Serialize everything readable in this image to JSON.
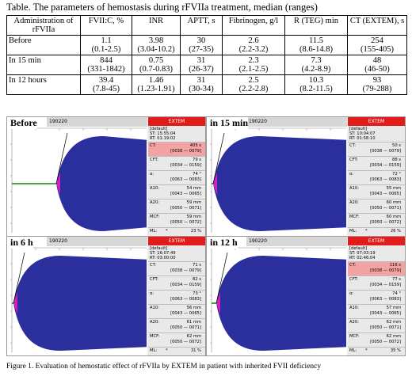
{
  "table": {
    "caption": "Table. The parameters of hemostasis during rFVIIa treatment, median (ranges)",
    "headers": [
      "Administration of rFVIIa",
      "FVII:C, %",
      "INR",
      "APTT, s",
      "Fibrinogen, g/l",
      "R (TEG) min",
      "CT (EXTEM), s"
    ],
    "rows": [
      {
        "label": "Before",
        "cells": [
          [
            "1.1",
            "(0.1-2.5)"
          ],
          [
            "3.98",
            "(3.04-10.2)"
          ],
          [
            "30",
            "(27-35)"
          ],
          [
            "2.6",
            "(2.2-3.2)"
          ],
          [
            "11.5",
            "(8.6-14.8)"
          ],
          [
            "254",
            "(155-405)"
          ]
        ]
      },
      {
        "label": "In 15 min",
        "cells": [
          [
            "844",
            "(331-1842)"
          ],
          [
            "0.75",
            "(0.7-0.83)"
          ],
          [
            "31",
            "(26-37)"
          ],
          [
            "2.3",
            "(2.1-2.5)"
          ],
          [
            "7.3",
            "(4.2-8.9)"
          ],
          [
            "48",
            "(46-50)"
          ]
        ]
      },
      {
        "label": "In 12 hours",
        "cells": [
          [
            "39.4",
            "(7.8-45)"
          ],
          [
            "1.46",
            "(1.23-1.91)"
          ],
          [
            "31",
            "(30-34)"
          ],
          [
            "2.5",
            "(2.2-2.8)"
          ],
          [
            "10.3",
            "(8.2-11.5)"
          ],
          [
            "93",
            "(79-288)"
          ]
        ]
      }
    ]
  },
  "panels": [
    {
      "label": "Before",
      "id": "190220",
      "extem": "EXTEM",
      "default": "[default]",
      "st": "ST: 15:55:04",
      "rt": "RT: 01:19:02",
      "ct": {
        "k": "CT:",
        "v": "405 s",
        "r": "[0038 — 0079]",
        "hi": true
      },
      "cft": {
        "k": "CFT:",
        "v": "79 s",
        "r": "[0034 — 0159]"
      },
      "alpha": {
        "k": "α:",
        "v": "74 °",
        "r": "[0063 — 0083]"
      },
      "a10": {
        "k": "A10:",
        "v": "54 mm",
        "r": "[0043 — 0065]"
      },
      "a20": {
        "k": "A20:",
        "v": "59 mm",
        "r": "[0050 — 0071]"
      },
      "mcf": {
        "k": "MCF:",
        "v": "59 mm",
        "r": "[0050 — 0072]"
      },
      "ml": {
        "k": "ML:",
        "star": "*",
        "v": "23 %"
      }
    },
    {
      "label": "in 15 min",
      "id": "190220",
      "extem": "EXTEM",
      "default": "[default]",
      "st": "ST: 10:04:07",
      "rt": "RT: 01:58:10",
      "ct": {
        "k": "CT:",
        "v": "50 s",
        "r": "[0038 — 0079]",
        "hi": false
      },
      "cft": {
        "k": "CFT:",
        "v": "88 s",
        "r": "[0034 — 0159]"
      },
      "alpha": {
        "k": "α:",
        "v": "72 °",
        "r": "[0063 — 0083]"
      },
      "a10": {
        "k": "A10:",
        "v": "55 mm",
        "r": "[0043 — 0065]"
      },
      "a20": {
        "k": "A20:",
        "v": "60 mm",
        "r": "[0050 — 0071]"
      },
      "mcf": {
        "k": "MCF:",
        "v": "60 mm",
        "r": "[0050 — 0072]"
      },
      "ml": {
        "k": "ML:",
        "star": "*",
        "v": "26 %"
      }
    },
    {
      "label": "in 6 h",
      "id": "190220",
      "extem": "EXTEM",
      "default": "[default]",
      "st": "ST: 16:07:49",
      "rt": "RT: 03:00:00",
      "ct": {
        "k": "CT:",
        "v": "71 s",
        "r": "[0038 — 0079]",
        "hi": false
      },
      "cft": {
        "k": "CFT:",
        "v": "82 s",
        "r": "[0034 — 0159]"
      },
      "alpha": {
        "k": "α:",
        "v": "73 °",
        "r": "[0063 — 0083]"
      },
      "a10": {
        "k": "A10:",
        "v": "56 mm",
        "r": "[0043 — 0065]"
      },
      "a20": {
        "k": "A20:",
        "v": "61 mm",
        "r": "[0050 — 0071]"
      },
      "mcf": {
        "k": "MCF:",
        "v": "62 mm",
        "r": "[0050 — 0072]"
      },
      "ml": {
        "k": "ML:",
        "star": "*",
        "v": "31 %"
      }
    },
    {
      "label": "in 12 h",
      "id": "190220",
      "extem": "EXTEM",
      "default": "[default]",
      "st": "ST: 07:03:19",
      "rt": "RT: 02:46:04",
      "ct": {
        "k": "CT:",
        "v": "116 s",
        "r": "[0038 — 0079]",
        "hi": true
      },
      "cft": {
        "k": "CFT:",
        "v": "77 s",
        "r": "[0034 — 0159]"
      },
      "alpha": {
        "k": "α:",
        "v": "74 °",
        "r": "[0063 — 0083]"
      },
      "a10": {
        "k": "A10:",
        "v": "57 mm",
        "r": "[0043 — 0065]"
      },
      "a20": {
        "k": "A20:",
        "v": "62 mm",
        "r": "[0050 — 0071]"
      },
      "mcf": {
        "k": "MCF:",
        "v": "62 mm",
        "r": "[0050 — 0072]"
      },
      "ml": {
        "k": "ML:",
        "star": "*",
        "v": "35 %"
      }
    }
  ],
  "colors": {
    "trace": "#2b2f9e",
    "onset": "#d020c0",
    "extem": "#e31b1b",
    "ct_high": "#f4a3a3"
  },
  "figure_caption": "Figure 1. Evaluation of hemostatic effect of rFVIIa by EXTEM in patient with inherited FVII deficiency"
}
